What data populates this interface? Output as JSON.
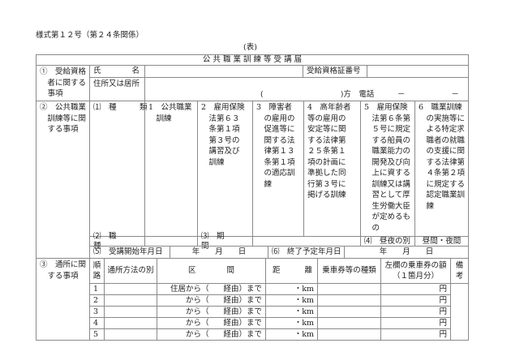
{
  "form_number": "様式第１２号（第２４条関係）",
  "side": "(表)",
  "title": "公 共 職 業 訓 練 等 受 講 届",
  "section1": {
    "label": "①　受給資格\n　者に関する\n　事項",
    "name_label": "氏　　　　名",
    "address_label": "住所又は居所",
    "cert_label": "受給資格証番号",
    "address_line": "(　　　　　　　　　　)方　電話　　　－　　　　　　－"
  },
  "section2": {
    "label": "②　公共職業\n　訓練等に関\n　する事項",
    "kind_label": "⑴　種　　　類",
    "types": [
      "1　公共職業\n　訓練",
      "2　雇用保険\n　法第６３\n　条第１項\n　第３号の\n　講習及び\n　訓練",
      "3　障害者\n　の雇用の\n　促進等に\n　関する法\n　律第１３\n　条第１項\n　の適応訓\n　練",
      "4　高年齢者\n等の雇用の\n安定等に関\nする法律第\n２５条第１\n項の計画に\n準拠した同\n行第３号に\n掲げる訓練",
      "5　雇用保険\n　法第６条第\n　５号に規定\n　する船員の\n　職業能力の\n　開発及び向\n　上に資する\n　訓練又は講\n　習として厚\n　生労働大臣\n　が定めるも\n　の",
      "6　職業訓練\n　の実施等に\n　よる特定求\n　職者の就職\n　の支援に関\n　する法律第\n　４条第２項\n　に規定する\n　認定職業訓\n　練"
    ],
    "job_label": "⑵　職　　　種",
    "period_label": "⑶　期　　　間",
    "daynight_label": "⑷　昼夜の別",
    "daynight_value": "昼間・夜間",
    "start_label": "⑸　受講開始年月日",
    "start_value": "年　　月　　日",
    "end_label": "⑹　終了予定年月日",
    "end_value": "年　　月　　日"
  },
  "section3": {
    "label": "③　通所に関\n　する事項",
    "headers": {
      "route": "順\n路",
      "method": "通所方法の別",
      "section": "区　　　　間",
      "distance_a": "距",
      "distance_b": "離",
      "ticket": "乗車券等の種類",
      "amount": "左欄の乗車券の額\n（１箇月分）",
      "remarks": "備\n考"
    },
    "rows": [
      {
        "no": "1",
        "from": "住居から（",
        "via": "経由）まで",
        "km": "・km",
        "yen": "円"
      },
      {
        "no": "2",
        "from": "から（",
        "via": "経由）まで",
        "km": "・km",
        "yen": "円"
      },
      {
        "no": "3",
        "from": "から（",
        "via": "経由）まで",
        "km": "・km",
        "yen": "円"
      },
      {
        "no": "4",
        "from": "から（",
        "via": "経由）まで",
        "km": "・km",
        "yen": "円"
      },
      {
        "no": "5",
        "from": "から（",
        "via": "経由）まで",
        "km": "・km",
        "yen": "円"
      }
    ]
  }
}
